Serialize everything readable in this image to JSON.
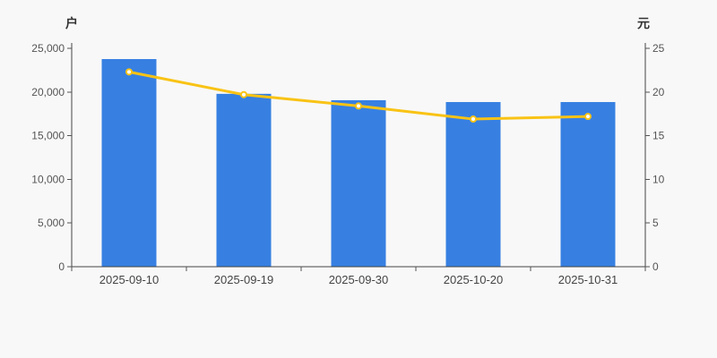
{
  "page": {
    "background_color": "#f8f8f8"
  },
  "chart_data": {
    "type": "bar",
    "subtype": "bar-line-combo-dual-axis",
    "categories": [
      "2025-09-10",
      "2025-09-19",
      "2025-09-30",
      "2025-10-20",
      "2025-10-31"
    ],
    "series": [
      {
        "name": "bar-series",
        "type": "bar",
        "axis": "left",
        "unit": "户",
        "color": "#3780E2",
        "values": [
          23770,
          19790,
          19060,
          18850,
          18850
        ]
      },
      {
        "name": "line-series",
        "type": "line",
        "axis": "right",
        "unit": "元",
        "color": "#F9C315",
        "marker_fill": "#FFFFFF",
        "values": [
          22.3,
          19.7,
          18.4,
          16.9,
          17.2
        ]
      }
    ],
    "left_axis": {
      "unit_label": "户",
      "min": 0,
      "max": 25000,
      "tick_interval": 5000,
      "tick_labels": [
        "0",
        "5,000",
        "10,000",
        "15,000",
        "20,000",
        "25,000"
      ]
    },
    "right_axis": {
      "unit_label": "元",
      "min": 0,
      "max": 25,
      "tick_interval": 5,
      "tick_labels": [
        "0",
        "5",
        "10",
        "15",
        "20",
        "25"
      ]
    },
    "title": "",
    "xlabel": "",
    "ylabel_left": "户",
    "ylabel_right": "元",
    "grid": false,
    "legend": null,
    "axis_color": "#444444",
    "tick_label_color": "#555555",
    "date_label_color": "#444444"
  }
}
